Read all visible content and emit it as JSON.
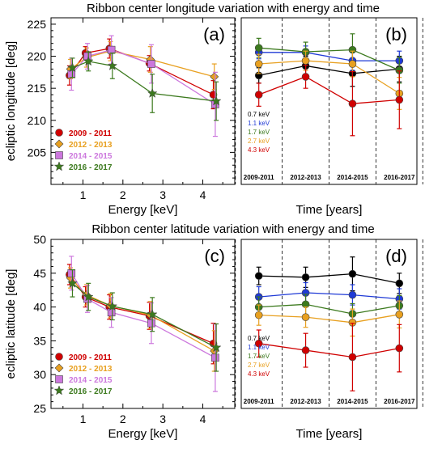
{
  "chart_data": [
    {
      "type": "line",
      "panel_label": "(a)",
      "title": "Ribbon center longitude variation with energy and time",
      "xlabel": "Energy [keV]",
      "ylabel": "ecliptic longitude [deg]",
      "xlim": [
        0.2,
        4.8
      ],
      "ylim": [
        200,
        226
      ],
      "xticks": [
        "1",
        "2",
        "3",
        "4"
      ],
      "yticks": [
        "205",
        "210",
        "215",
        "220",
        "225"
      ],
      "legend_position": "bottom-left",
      "x": [
        0.7,
        1.1,
        1.7,
        2.7,
        4.3
      ],
      "series": [
        {
          "name": "2009 - 2011",
          "color": "#d00000",
          "marker": "circle",
          "values": [
            217.0,
            220.5,
            221.2,
            218.9,
            214.0
          ],
          "err": [
            1.5,
            1.0,
            1.5,
            1.2,
            2.2
          ]
        },
        {
          "name": "2012 - 2013",
          "color": "#e8a020",
          "marker": "diamond",
          "values": [
            218.0,
            219.8,
            220.8,
            219.5,
            216.8
          ],
          "err": [
            1.5,
            1.5,
            1.5,
            2.0,
            2.0
          ]
        },
        {
          "name": "2014 - 2015",
          "color": "#cc77dd",
          "marker": "square",
          "values": [
            217.2,
            220.0,
            221.0,
            218.8,
            212.5
          ],
          "err": [
            2.5,
            2.0,
            2.2,
            3.0,
            5.0
          ]
        },
        {
          "name": "2016 - 2017",
          "color": "#3c7a1e",
          "marker": "star",
          "values": [
            218.2,
            219.2,
            218.5,
            214.2,
            213.0
          ],
          "err": [
            1.5,
            1.5,
            2.0,
            3.0,
            3.0
          ]
        }
      ]
    },
    {
      "type": "line",
      "panel_label": "(b)",
      "xlabel": "Time [years]",
      "ylim": [
        200,
        226
      ],
      "categories": [
        "2009-2011",
        "2012-2013",
        "2014-2015",
        "2016-2017"
      ],
      "legend_position": "bottom-left",
      "series": [
        {
          "name": "0.7 keV",
          "color": "#000000",
          "values": [
            217.0,
            218.5,
            217.3,
            218.0
          ],
          "err": [
            1.2,
            1.5,
            2.0,
            2.0
          ]
        },
        {
          "name": "1.1 keV",
          "color": "#1f3ad6",
          "values": [
            220.6,
            220.6,
            219.3,
            219.3
          ],
          "err": [
            1.0,
            1.0,
            1.5,
            1.5
          ]
        },
        {
          "name": "1.7 keV",
          "color": "#3c7a1e",
          "values": [
            221.3,
            220.7,
            221.0,
            217.8
          ],
          "err": [
            1.5,
            1.5,
            2.5,
            2.0
          ]
        },
        {
          "name": "2.7 keV",
          "color": "#e8a020",
          "values": [
            218.8,
            219.3,
            218.8,
            214.2
          ],
          "err": [
            1.5,
            1.5,
            2.0,
            2.5
          ]
        },
        {
          "name": "4.3 keV",
          "color": "#d00000",
          "values": [
            214.0,
            216.8,
            212.6,
            213.2
          ],
          "err": [
            1.8,
            1.8,
            5.0,
            4.5
          ]
        }
      ]
    },
    {
      "type": "line",
      "panel_label": "(c)",
      "title": "Ribbon center latitude variation with energy and time",
      "xlabel": "Energy [keV]",
      "ylabel": "ecliptic latitude [deg]",
      "xlim": [
        0.2,
        4.8
      ],
      "ylim": [
        25,
        50
      ],
      "xticks": [
        "1",
        "2",
        "3",
        "4"
      ],
      "yticks": [
        "25",
        "30",
        "35",
        "40",
        "45",
        "50"
      ],
      "legend_position": "bottom-left",
      "x": [
        0.7,
        1.1,
        1.7,
        2.7,
        4.3
      ],
      "series": [
        {
          "name": "2009 - 2011",
          "color": "#d00000",
          "marker": "circle",
          "values": [
            44.8,
            41.5,
            40.0,
            38.7,
            34.6
          ],
          "err": [
            1.5,
            1.5,
            1.8,
            2.0,
            3.0
          ]
        },
        {
          "name": "2012 - 2013",
          "color": "#e8a020",
          "marker": "diamond",
          "values": [
            44.3,
            41.8,
            40.2,
            38.8,
            33.5
          ],
          "err": [
            1.5,
            1.5,
            1.8,
            2.0,
            3.0
          ]
        },
        {
          "name": "2014 - 2015",
          "color": "#cc77dd",
          "marker": "square",
          "values": [
            45.0,
            41.2,
            39.2,
            37.6,
            32.5
          ],
          "err": [
            2.5,
            2.0,
            2.2,
            3.0,
            5.0
          ]
        },
        {
          "name": "2016 - 2017",
          "color": "#3c7a1e",
          "marker": "star",
          "values": [
            43.5,
            41.5,
            40.1,
            38.9,
            34.0
          ],
          "err": [
            2.0,
            2.0,
            2.0,
            2.5,
            3.5
          ]
        }
      ]
    },
    {
      "type": "line",
      "panel_label": "(d)",
      "xlabel": "Time [years]",
      "ylim": [
        25,
        50
      ],
      "categories": [
        "2009-2011",
        "2012-2013",
        "2014-2015",
        "2016-2017"
      ],
      "legend_position": "bottom-left",
      "series": [
        {
          "name": "0.7 keV",
          "color": "#000000",
          "values": [
            44.6,
            44.4,
            44.9,
            43.5
          ],
          "err": [
            1.3,
            1.5,
            2.5,
            1.5
          ]
        },
        {
          "name": "1.1 keV",
          "color": "#1f3ad6",
          "values": [
            41.5,
            42.1,
            41.8,
            41.2
          ],
          "err": [
            1.5,
            1.5,
            1.5,
            1.5
          ]
        },
        {
          "name": "1.7 keV",
          "color": "#3c7a1e",
          "values": [
            40.0,
            40.4,
            39.0,
            40.2
          ],
          "err": [
            1.5,
            1.5,
            1.5,
            1.5
          ]
        },
        {
          "name": "2.7 keV",
          "color": "#e8a020",
          "values": [
            38.8,
            38.5,
            37.7,
            38.9
          ],
          "err": [
            1.5,
            1.5,
            2.0,
            2.0
          ]
        },
        {
          "name": "4.3 keV",
          "color": "#d00000",
          "values": [
            34.6,
            33.6,
            32.6,
            33.9
          ],
          "err": [
            2.0,
            2.5,
            5.0,
            3.5
          ]
        }
      ]
    }
  ]
}
